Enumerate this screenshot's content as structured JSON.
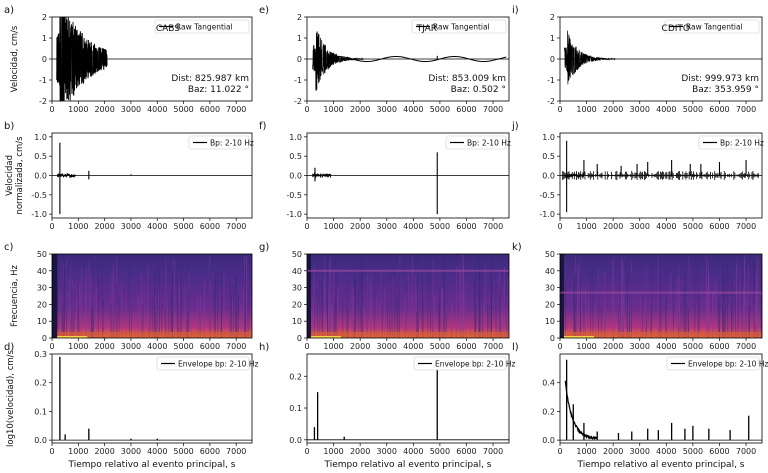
{
  "chart_data": {
    "type": "line",
    "figure": "seismic waveform multipanel",
    "x_axis": {
      "label": "Tiempo relativo al evento principal, s",
      "range": [
        0,
        7600
      ],
      "ticks": [
        0,
        1000,
        2000,
        3000,
        4000,
        5000,
        6000,
        7000
      ]
    },
    "rows": [
      {
        "row": "raw",
        "ylabel": "Velocidad, cm/s",
        "ylim": [
          -2,
          2
        ],
        "yticks": [
          -2,
          -1,
          0,
          1,
          2
        ],
        "legend": "Raw Tangential"
      },
      {
        "row": "bp",
        "ylabel_lines": [
          "Velocidad",
          "normalizada, cm/s"
        ],
        "ylim": [
          -1.1,
          1.1
        ],
        "yticks": [
          -1.0,
          -0.5,
          0.0,
          0.5,
          1.0
        ],
        "legend": "Bp: 2-10 Hz"
      },
      {
        "row": "spec",
        "ylabel": "Frecuencia, Hz",
        "ylim": [
          0,
          50
        ],
        "yticks": [
          0,
          10,
          20,
          30,
          40,
          50
        ]
      },
      {
        "row": "env",
        "ylabel": "log10(velocidad), cm/s",
        "legend": "Envelope bp: 2-10 Hz"
      }
    ],
    "columns": [
      {
        "station": "CABS",
        "dist": "Dist: 825.987 km",
        "baz": "Baz: 11.022 °",
        "panels": [
          "a)",
          "b)",
          "c)",
          "d)"
        ],
        "raw": {
          "peak_time": 300,
          "peak_amp": 2.0,
          "saturated": true,
          "events": []
        },
        "bp": {
          "events": [
            [
              300,
              0.85
            ],
            [
              300,
              -1.0
            ],
            [
              1400,
              0.12
            ],
            [
              1400,
              -0.1
            ],
            [
              3000,
              0.03
            ]
          ]
        },
        "env": {
          "ylim": [
            -0.01,
            0.3
          ],
          "yticks": [
            0.0,
            0.1,
            0.2,
            0.3
          ],
          "yticklabels": [
            "0.0",
            "0.1",
            "0.2",
            "0.3"
          ],
          "spikes": [
            [
              300,
              0.29
            ],
            [
              500,
              0.02
            ],
            [
              1400,
              0.04
            ],
            [
              3000,
              0.005
            ],
            [
              4000,
              0.005
            ]
          ]
        },
        "spec": {
          "bright_bands": [],
          "dark_region_end": 200
        }
      },
      {
        "station": "TJAR",
        "dist": "Dist: 853.009 km",
        "baz": "Baz: 0.502 °",
        "panels": [
          "e)",
          "f)",
          "g)",
          "h)"
        ],
        "raw": {
          "peak_time": 330,
          "peak_amp": 1.7,
          "saturated": false,
          "events": [
            [
              4900,
              0.15
            ]
          ]
        },
        "bp": {
          "events": [
            [
              300,
              0.2
            ],
            [
              300,
              -0.15
            ],
            [
              4900,
              0.6
            ],
            [
              4900,
              -1.0
            ]
          ]
        },
        "env": {
          "ylim": [
            -0.01,
            0.27
          ],
          "yticks": [
            0.0,
            0.1,
            0.2
          ],
          "yticklabels": [
            "0.0",
            "0.1",
            "0.2"
          ],
          "spikes": [
            [
              280,
              0.04
            ],
            [
              400,
              0.15
            ],
            [
              4900,
              0.26
            ],
            [
              1400,
              0.01
            ]
          ]
        },
        "spec": {
          "bright_bands": [
            40
          ],
          "dark_region_end": 150
        }
      },
      {
        "station": "CDITO",
        "dist": "Dist: 999.973 km",
        "baz": "Baz: 353.959 °",
        "panels": [
          "i)",
          "j)",
          "k)",
          "l)"
        ],
        "raw": {
          "peak_time": 280,
          "peak_amp": 1.4,
          "saturated": false,
          "events": []
        },
        "bp": {
          "events": [
            [
              250,
              0.9
            ],
            [
              250,
              -0.95
            ],
            [
              900,
              0.4
            ],
            [
              1400,
              0.3
            ],
            [
              2300,
              0.25
            ],
            [
              2900,
              0.3
            ],
            [
              3300,
              0.35
            ],
            [
              4200,
              0.4
            ],
            [
              4900,
              0.3
            ],
            [
              5300,
              0.3
            ],
            [
              6000,
              0.35
            ],
            [
              7000,
              0.4
            ]
          ]
        },
        "env": {
          "ylim": [
            -0.02,
            0.6
          ],
          "yticks": [
            0.0,
            0.2,
            0.4
          ],
          "yticklabels": [
            "0.0",
            "0.2",
            "0.4"
          ],
          "spikes": [
            [
              250,
              0.56
            ],
            [
              500,
              0.25
            ],
            [
              900,
              0.12
            ],
            [
              1400,
              0.06
            ],
            [
              2200,
              0.05
            ],
            [
              2700,
              0.06
            ],
            [
              3300,
              0.08
            ],
            [
              3700,
              0.07
            ],
            [
              4200,
              0.12
            ],
            [
              4700,
              0.08
            ],
            [
              5000,
              0.1
            ],
            [
              5600,
              0.08
            ],
            [
              6400,
              0.07
            ],
            [
              7100,
              0.17
            ]
          ]
        },
        "spec": {
          "bright_bands": [
            27
          ],
          "dark_region_end": 150
        }
      }
    ]
  }
}
